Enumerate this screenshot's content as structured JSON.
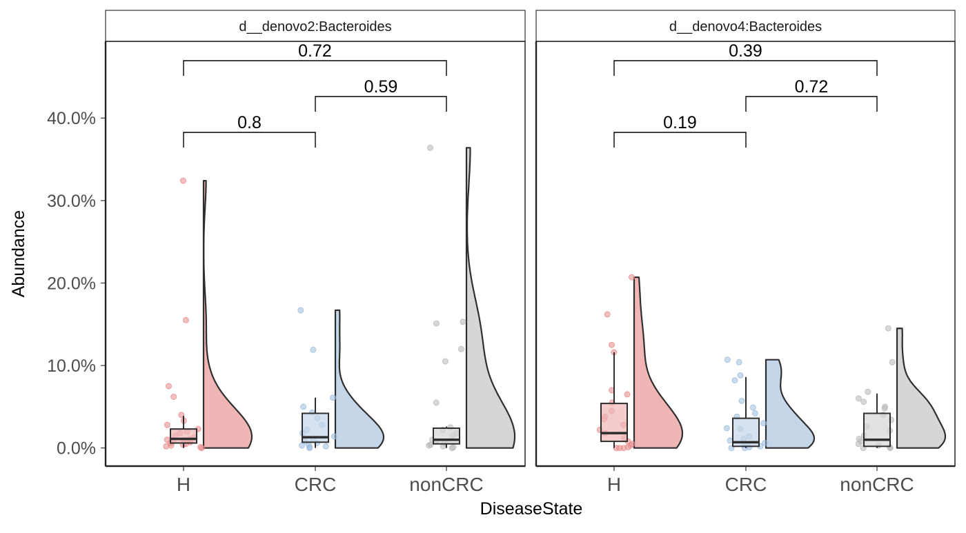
{
  "chart_data": {
    "type": "raincloud",
    "facet_variable": "feature",
    "x_label": "DiseaseState",
    "y_label": "Abundance",
    "categories": [
      "H",
      "CRC",
      "nonCRC"
    ],
    "y_ticks": [
      0,
      10,
      20,
      30,
      40
    ],
    "y_tick_labels": [
      "0.0%",
      "10.0%",
      "20.0%",
      "30.0%",
      "40.0%"
    ],
    "y_unit": "percent",
    "ylim": [
      -2.2,
      49.3
    ],
    "colors": {
      "H": "#f0b6b6",
      "CRC": "#c5d6e8",
      "nonCRC": "#d6d6d6"
    },
    "point_colors": {
      "H": "#e88a8a",
      "CRC": "#9dbddf",
      "nonCRC": "#b8b8b8"
    },
    "outline_color": "#2e2e2e",
    "panels": [
      {
        "title": "d__denovo2:Bacteroides",
        "box": {
          "H": {
            "whisker_low": 0.0,
            "q1": 0.6,
            "median": 1.1,
            "q3": 2.3,
            "whisker_high": 3.9
          },
          "CRC": {
            "whisker_low": 0.0,
            "q1": 0.7,
            "median": 1.3,
            "q3": 4.2,
            "whisker_high": 6.1
          },
          "nonCRC": {
            "whisker_low": 0.0,
            "q1": 0.5,
            "median": 1.0,
            "q3": 2.4,
            "whisker_high": 2.6
          }
        },
        "points": {
          "H": [
            32.4,
            15.5,
            7.5,
            6.2,
            4.0,
            3.3,
            2.8,
            2.3,
            2.0,
            1.8,
            1.5,
            1.3,
            1.1,
            1.0,
            0.9,
            0.8,
            0.7,
            0.6,
            0.5,
            0.4,
            0.3,
            0.2,
            0.1,
            0.0
          ],
          "CRC": [
            16.7,
            11.9,
            6.1,
            5.0,
            4.3,
            3.6,
            2.8,
            2.2,
            1.8,
            1.4,
            1.0,
            0.8,
            0.6,
            0.4,
            0.3,
            0.2,
            0.1,
            0.0
          ],
          "nonCRC": [
            36.4,
            15.3,
            15.1,
            12.0,
            10.5,
            5.5,
            2.5,
            2.2,
            1.8,
            1.5,
            1.0,
            0.8,
            0.6,
            0.4,
            0.3,
            0.2,
            0.1,
            0.0
          ]
        },
        "violin_max": {
          "H": 32.4,
          "CRC": 16.7,
          "nonCRC": 36.4
        },
        "comparisons": [
          {
            "groups": [
              "H",
              "nonCRC"
            ],
            "p": "0.72"
          },
          {
            "groups": [
              "CRC",
              "nonCRC"
            ],
            "p": "0.59"
          },
          {
            "groups": [
              "H",
              "CRC"
            ],
            "p": "0.8"
          }
        ]
      },
      {
        "title": "d__denovo4:Bacteroides",
        "box": {
          "H": {
            "whisker_low": 0.0,
            "q1": 0.8,
            "median": 1.8,
            "q3": 5.4,
            "whisker_high": 11.6
          },
          "CRC": {
            "whisker_low": 0.0,
            "q1": 0.2,
            "median": 0.7,
            "q3": 3.6,
            "whisker_high": 8.6
          },
          "nonCRC": {
            "whisker_low": 0.0,
            "q1": 0.2,
            "median": 1.0,
            "q3": 4.2,
            "whisker_high": 6.6
          }
        },
        "points": {
          "H": [
            20.7,
            16.2,
            12.5,
            11.6,
            7.0,
            6.5,
            5.5,
            4.5,
            3.8,
            3.5,
            2.8,
            2.2,
            1.8,
            1.2,
            0.8,
            0.5,
            0.3,
            0.1,
            0.0,
            0.0,
            0.0
          ],
          "CRC": [
            10.7,
            10.4,
            8.8,
            8.2,
            5.7,
            4.9,
            4.2,
            3.8,
            3.0,
            2.4,
            2.3,
            1.4,
            1.1,
            0.9,
            0.6,
            0.4,
            0.2,
            0.1,
            0.0,
            0.0
          ],
          "nonCRC": [
            14.5,
            10.4,
            6.8,
            6.0,
            5.6,
            5.0,
            4.8,
            4.0,
            3.4,
            2.6,
            2.1,
            1.5,
            1.1,
            0.8,
            0.5,
            0.3,
            0.1,
            0.0,
            0.0
          ]
        },
        "violin_max": {
          "H": 20.7,
          "CRC": 10.7,
          "nonCRC": 14.5
        },
        "comparisons": [
          {
            "groups": [
              "H",
              "nonCRC"
            ],
            "p": "0.39"
          },
          {
            "groups": [
              "CRC",
              "nonCRC"
            ],
            "p": "0.72"
          },
          {
            "groups": [
              "H",
              "CRC"
            ],
            "p": "0.19"
          }
        ]
      }
    ]
  }
}
